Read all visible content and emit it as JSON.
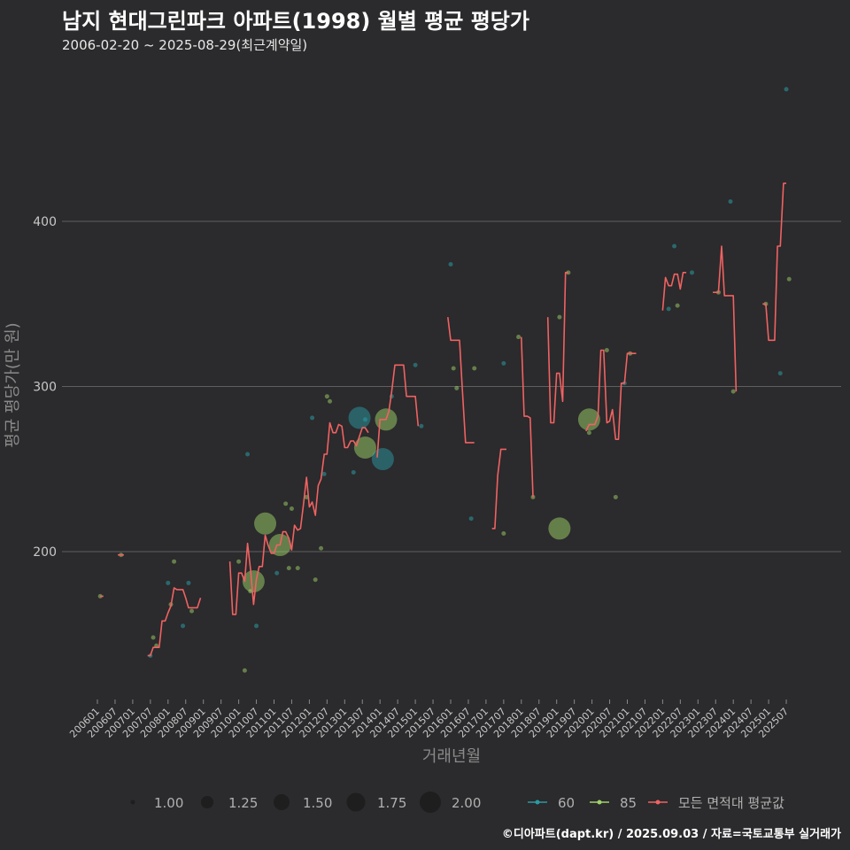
{
  "page": {
    "title": "남지 현대그린파크 아파트(1998) 월별 평균 평당가",
    "subtitle": "2006-02-20 ~ 2025-08-29(최근계약일)",
    "footer": "©디아파트(dapt.kr) / 2025.09.03 / 자료=국토교통부 실거래가"
  },
  "chart_data": {
    "type": "line",
    "title": "남지 현대그린파크 아파트(1998) 월별 평균 평당가",
    "xlabel": "거래년월",
    "ylabel": "평균 평당가(만 원)",
    "ylim": [
      110,
      480
    ],
    "xlim": [
      2006.0,
      2025.95
    ],
    "yticks": [
      200,
      300,
      400
    ],
    "xticks": [
      "200601",
      "200607",
      "200701",
      "200707",
      "200801",
      "200807",
      "200901",
      "200907",
      "201001",
      "201007",
      "201101",
      "201107",
      "201201",
      "201207",
      "201301",
      "201307",
      "201401",
      "201407",
      "201501",
      "201507",
      "201601",
      "201607",
      "201701",
      "201707",
      "201801",
      "201807",
      "201901",
      "201907",
      "202001",
      "202007",
      "202101",
      "202107",
      "202201",
      "202207",
      "202301",
      "202307",
      "202401",
      "202407",
      "202501",
      "202507"
    ],
    "colors": {
      "60": "#2a9aa3",
      "85": "#9fd36a",
      "avg": "#f06262",
      "bg": "#2b2a2c",
      "grid": "#5f5f5f"
    },
    "series_avg": {
      "name": "모든 면적대 평균값",
      "segments": [
        [
          [
            2006.08,
            173
          ],
          [
            2006.17,
            173
          ]
        ],
        [
          [
            2006.58,
            198
          ],
          [
            2006.75,
            198
          ]
        ],
        [
          [
            2007.42,
            137
          ],
          [
            2007.5,
            137
          ],
          [
            2007.58,
            142
          ],
          [
            2007.75,
            142
          ],
          [
            2007.83,
            158
          ],
          [
            2007.92,
            158
          ],
          [
            2008.0,
            163
          ],
          [
            2008.08,
            167
          ],
          [
            2008.17,
            178
          ],
          [
            2008.25,
            177
          ],
          [
            2008.42,
            177
          ],
          [
            2008.5,
            172
          ],
          [
            2008.58,
            166
          ],
          [
            2008.75,
            166
          ],
          [
            2008.83,
            166
          ],
          [
            2008.92,
            172
          ]
        ],
        [
          [
            2009.75,
            194
          ],
          [
            2009.83,
            162
          ],
          [
            2009.92,
            162
          ],
          [
            2010.0,
            187
          ],
          [
            2010.08,
            187
          ],
          [
            2010.17,
            182
          ],
          [
            2010.25,
            205
          ],
          [
            2010.33,
            190
          ],
          [
            2010.42,
            168
          ],
          [
            2010.5,
            183
          ],
          [
            2010.58,
            191
          ],
          [
            2010.67,
            191
          ],
          [
            2010.75,
            210
          ],
          [
            2010.83,
            204
          ],
          [
            2010.92,
            199
          ],
          [
            2011.0,
            199
          ],
          [
            2011.08,
            204
          ],
          [
            2011.17,
            204
          ],
          [
            2011.25,
            212
          ],
          [
            2011.33,
            212
          ],
          [
            2011.42,
            208
          ],
          [
            2011.5,
            201
          ],
          [
            2011.58,
            216
          ],
          [
            2011.67,
            213
          ],
          [
            2011.75,
            214
          ],
          [
            2011.83,
            228
          ],
          [
            2011.92,
            245
          ],
          [
            2012.0,
            227
          ],
          [
            2012.08,
            230
          ],
          [
            2012.17,
            222
          ],
          [
            2012.25,
            240
          ],
          [
            2012.33,
            244
          ],
          [
            2012.42,
            259
          ],
          [
            2012.5,
            259
          ],
          [
            2012.58,
            278
          ],
          [
            2012.67,
            272
          ],
          [
            2012.75,
            272
          ],
          [
            2012.83,
            277
          ],
          [
            2012.92,
            276
          ],
          [
            2013.0,
            263
          ],
          [
            2013.08,
            263
          ],
          [
            2013.17,
            267
          ],
          [
            2013.25,
            267
          ],
          [
            2013.33,
            264
          ],
          [
            2013.42,
            270
          ],
          [
            2013.5,
            275
          ],
          [
            2013.58,
            275
          ],
          [
            2013.67,
            272
          ]
        ],
        [
          [
            2013.92,
            257
          ],
          [
            2014.0,
            280
          ],
          [
            2014.08,
            280
          ],
          [
            2014.17,
            280
          ],
          [
            2014.25,
            285
          ],
          [
            2014.33,
            297
          ],
          [
            2014.42,
            313
          ],
          [
            2014.5,
            313
          ],
          [
            2014.58,
            313
          ],
          [
            2014.67,
            313
          ],
          [
            2014.75,
            294
          ],
          [
            2014.83,
            294
          ],
          [
            2014.92,
            294
          ],
          [
            2015.0,
            294
          ],
          [
            2015.08,
            276
          ]
        ],
        [
          [
            2015.92,
            342
          ],
          [
            2016.0,
            328
          ],
          [
            2016.08,
            328
          ],
          [
            2016.17,
            328
          ],
          [
            2016.25,
            328
          ],
          [
            2016.33,
            298
          ],
          [
            2016.42,
            266
          ],
          [
            2016.5,
            266
          ],
          [
            2016.58,
            266
          ],
          [
            2016.67,
            266
          ]
        ],
        [
          [
            2017.17,
            214
          ],
          [
            2017.25,
            214
          ],
          [
            2017.33,
            246
          ],
          [
            2017.42,
            262
          ],
          [
            2017.5,
            262
          ],
          [
            2017.58,
            262
          ]
        ],
        [
          [
            2018.0,
            330
          ],
          [
            2018.08,
            282
          ],
          [
            2018.17,
            282
          ],
          [
            2018.25,
            281
          ],
          [
            2018.33,
            233
          ]
        ],
        [
          [
            2018.75,
            342
          ],
          [
            2018.83,
            278
          ],
          [
            2018.92,
            278
          ],
          [
            2019.0,
            308
          ],
          [
            2019.08,
            308
          ],
          [
            2019.17,
            291
          ],
          [
            2019.25,
            369
          ],
          [
            2019.33,
            369
          ]
        ],
        [
          [
            2019.83,
            273
          ],
          [
            2019.92,
            277
          ],
          [
            2020.0,
            277
          ],
          [
            2020.08,
            277
          ],
          [
            2020.17,
            282
          ],
          [
            2020.25,
            322
          ],
          [
            2020.33,
            322
          ],
          [
            2020.42,
            278
          ],
          [
            2020.5,
            279
          ],
          [
            2020.58,
            286
          ],
          [
            2020.67,
            268
          ],
          [
            2020.75,
            268
          ],
          [
            2020.83,
            302
          ],
          [
            2020.92,
            302
          ],
          [
            2021.0,
            320
          ],
          [
            2021.08,
            320
          ],
          [
            2021.17,
            320
          ],
          [
            2021.25,
            320
          ]
        ],
        [
          [
            2022.0,
            346
          ],
          [
            2022.08,
            366
          ],
          [
            2022.17,
            361
          ],
          [
            2022.25,
            361
          ],
          [
            2022.33,
            368
          ],
          [
            2022.42,
            368
          ],
          [
            2022.5,
            359
          ],
          [
            2022.58,
            369
          ],
          [
            2022.67,
            369
          ]
        ],
        [
          [
            2023.42,
            357
          ],
          [
            2023.5,
            357
          ],
          [
            2023.58,
            357
          ],
          [
            2023.67,
            385
          ],
          [
            2023.75,
            355
          ],
          [
            2023.83,
            355
          ],
          [
            2023.92,
            355
          ],
          [
            2024.0,
            355
          ],
          [
            2024.08,
            297
          ]
        ],
        [
          [
            2024.83,
            350
          ],
          [
            2024.92,
            350
          ],
          [
            2025.0,
            328
          ],
          [
            2025.08,
            328
          ],
          [
            2025.17,
            328
          ],
          [
            2025.25,
            385
          ],
          [
            2025.33,
            385
          ],
          [
            2025.42,
            423
          ],
          [
            2025.5,
            423
          ]
        ]
      ]
    },
    "series_60": {
      "name": "60",
      "points": [
        [
          2007.5,
          137,
          1
        ],
        [
          2008.0,
          181,
          1
        ],
        [
          2008.42,
          155,
          1
        ],
        [
          2008.58,
          181,
          1
        ],
        [
          2010.25,
          259,
          1
        ],
        [
          2010.5,
          155,
          1
        ],
        [
          2011.08,
          187,
          1
        ],
        [
          2012.08,
          281,
          1
        ],
        [
          2012.42,
          247,
          1
        ],
        [
          2013.25,
          248,
          1
        ],
        [
          2013.42,
          281,
          2
        ],
        [
          2013.58,
          280,
          1
        ],
        [
          2014.08,
          256,
          2
        ],
        [
          2014.33,
          294,
          1
        ],
        [
          2015.0,
          313,
          1
        ],
        [
          2015.17,
          276,
          1
        ],
        [
          2016.0,
          374,
          1
        ],
        [
          2016.58,
          220,
          1
        ],
        [
          2017.5,
          314,
          1
        ],
        [
          2020.92,
          302,
          1
        ],
        [
          2022.17,
          347,
          1
        ],
        [
          2022.33,
          385,
          1
        ],
        [
          2022.83,
          369,
          1
        ],
        [
          2023.92,
          412,
          1
        ],
        [
          2025.33,
          308,
          1
        ],
        [
          2025.5,
          480,
          1
        ]
      ]
    },
    "series_85": {
      "name": "85",
      "points": [
        [
          2006.08,
          173,
          1
        ],
        [
          2006.67,
          198,
          1
        ],
        [
          2007.58,
          148,
          1
        ],
        [
          2007.67,
          143,
          1
        ],
        [
          2008.08,
          168,
          1
        ],
        [
          2008.17,
          194,
          1
        ],
        [
          2008.67,
          164,
          1
        ],
        [
          2010.0,
          194,
          1
        ],
        [
          2010.17,
          128,
          1
        ],
        [
          2010.33,
          176,
          1
        ],
        [
          2010.42,
          182,
          2
        ],
        [
          2010.75,
          217,
          2
        ],
        [
          2011.17,
          204,
          2
        ],
        [
          2011.33,
          229,
          1
        ],
        [
          2011.42,
          190,
          1
        ],
        [
          2011.5,
          226,
          1
        ],
        [
          2011.67,
          190,
          1
        ],
        [
          2011.92,
          233,
          1
        ],
        [
          2012.17,
          183,
          1
        ],
        [
          2012.33,
          202,
          1
        ],
        [
          2012.5,
          294,
          1
        ],
        [
          2012.58,
          291,
          1
        ],
        [
          2013.58,
          263,
          2
        ],
        [
          2014.17,
          280,
          2
        ],
        [
          2016.08,
          311,
          1
        ],
        [
          2016.17,
          299,
          1
        ],
        [
          2016.67,
          311,
          1
        ],
        [
          2017.5,
          211,
          1
        ],
        [
          2017.92,
          330,
          1
        ],
        [
          2018.33,
          233,
          1
        ],
        [
          2019.08,
          342,
          1
        ],
        [
          2019.33,
          369,
          1
        ],
        [
          2019.08,
          214,
          2
        ],
        [
          2019.92,
          280,
          2
        ],
        [
          2019.92,
          272,
          1
        ],
        [
          2020.42,
          322,
          1
        ],
        [
          2020.67,
          233,
          1
        ],
        [
          2021.08,
          320,
          1
        ],
        [
          2022.42,
          349,
          1
        ],
        [
          2023.58,
          357,
          1
        ],
        [
          2024.0,
          297,
          1
        ],
        [
          2024.92,
          350,
          1
        ],
        [
          2025.58,
          365,
          1
        ]
      ]
    },
    "legend": {
      "size_values": [
        "1.00",
        "1.25",
        "1.50",
        "1.75",
        "2.00"
      ],
      "series_labels": [
        "60",
        "85",
        "모든 면적대 평균값"
      ]
    }
  }
}
